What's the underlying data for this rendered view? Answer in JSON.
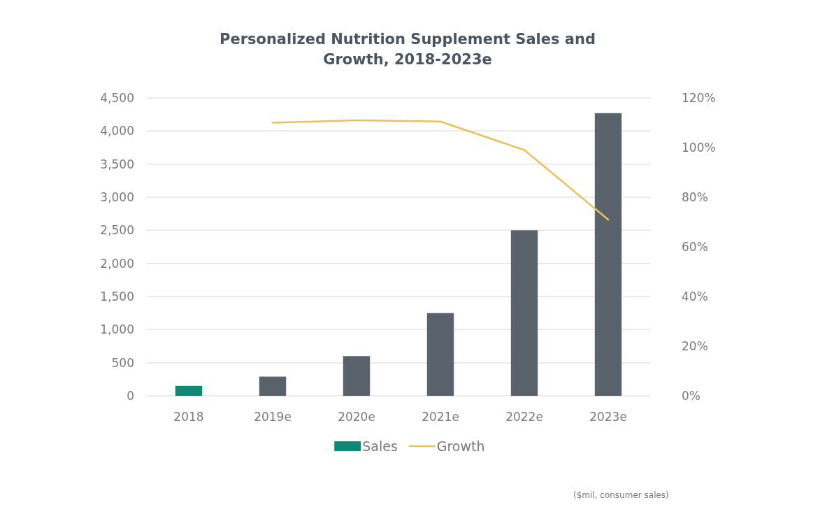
{
  "chart_data": {
    "type": "bar",
    "title": "Personalized Nutrition Supplement Sales and Growth, 2018-2023e",
    "categories": [
      "2018",
      "2019e",
      "2020e",
      "2021e",
      "2022e",
      "2023e"
    ],
    "series": [
      {
        "name": "Sales",
        "color": "#0e8a74",
        "colors": [
          "#0e8a74",
          "#5a636b",
          "#5a636b",
          "#5a636b",
          "#5a636b",
          "#5a636b"
        ],
        "values": [
          150,
          290,
          600,
          1250,
          2500,
          4270
        ]
      },
      {
        "name": "Growth",
        "type": "line",
        "axis": "y2",
        "color": "#e8c25a",
        "values": [
          null,
          110,
          111,
          110.5,
          99,
          71
        ]
      }
    ],
    "ylim": [
      0,
      4500
    ],
    "yticks": [
      {
        "value": 0,
        "label": "0"
      },
      {
        "value": 500,
        "label": "500"
      },
      {
        "value": 1000,
        "label": "1,000"
      },
      {
        "value": 1500,
        "label": "1,500"
      },
      {
        "value": 2000,
        "label": "2,000"
      },
      {
        "value": 2500,
        "label": "2,500"
      },
      {
        "value": 3000,
        "label": "3,000"
      },
      {
        "value": 3500,
        "label": "3,500"
      },
      {
        "value": 4000,
        "label": "4,000"
      },
      {
        "value": 4500,
        "label": "4,500"
      }
    ],
    "y2lim": [
      0,
      120
    ],
    "y2ticks": [
      {
        "value": 0,
        "label": "0%"
      },
      {
        "value": 20,
        "label": "20%"
      },
      {
        "value": 40,
        "label": "40%"
      },
      {
        "value": 60,
        "label": "60%"
      },
      {
        "value": 80,
        "label": "80%"
      },
      {
        "value": 100,
        "label": "100%"
      },
      {
        "value": 120,
        "label": "120%"
      }
    ],
    "grid": "y",
    "legend": "bottom",
    "annotations": [
      "($mil, consumer sales)"
    ]
  }
}
